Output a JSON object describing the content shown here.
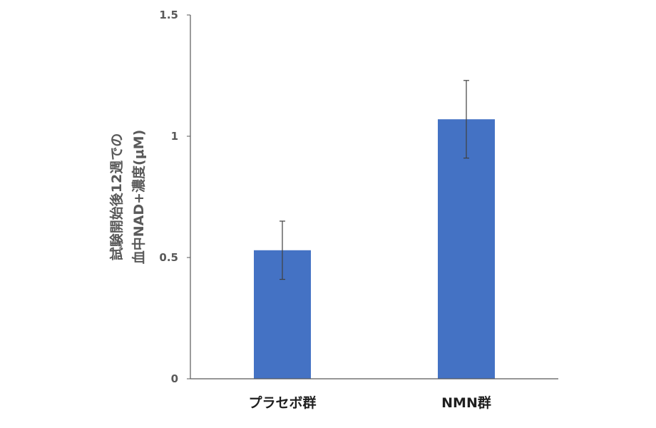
{
  "chart_data": {
    "type": "bar",
    "categories": [
      "プラセボ群",
      "NMN群"
    ],
    "values": [
      0.53,
      1.07
    ],
    "error": [
      0.12,
      0.16
    ],
    "ylabel_lines": [
      "試験開始後12週での",
      "血中NAD+濃度(μM)"
    ],
    "xlabel": "",
    "ylim": [
      0,
      1.5
    ],
    "yticks": [
      0,
      0.5,
      1,
      1.5
    ],
    "ytick_labels": [
      "0",
      "0.5",
      "1",
      "1.5"
    ],
    "grid": false,
    "legend": "none",
    "bar_color": "#4472c4",
    "error_bar_color": "#404040",
    "axis_color": "#595959"
  }
}
